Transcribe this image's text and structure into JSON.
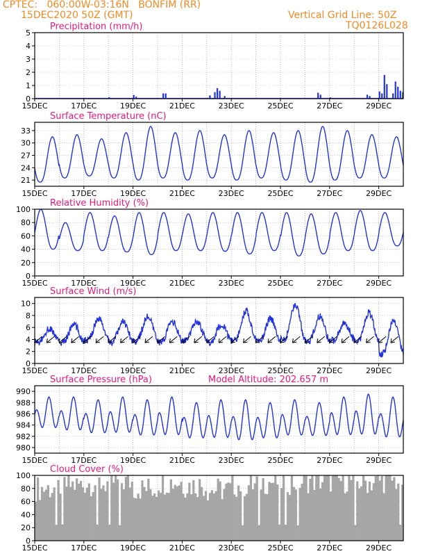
{
  "header": {
    "line1": "CPTEC:   060:00W-03:16N   BONFIM (RR)",
    "line2": "15DEC2020 50Z (GMT)",
    "right1": "Vertical Grid Line: 50Z",
    "right2": "TQ0126L028"
  },
  "colors": {
    "header": "#f08a24",
    "title": "#e8187c",
    "series": "#2233dd",
    "cloud": "#a6a6a6",
    "arrow": "#000000"
  },
  "x_axis": {
    "labels": [
      "15DEC",
      "17DEC",
      "19DEC",
      "21DEC",
      "23DEC",
      "25DEC",
      "27DEC",
      "29DEC"
    ],
    "label_days": [
      0,
      2,
      4,
      6,
      8,
      10,
      12,
      14
    ],
    "range_days": [
      0,
      15
    ],
    "vertical_grid_every_days": 1
  },
  "chart_data": [
    {
      "id": "precip",
      "type": "bar",
      "title": "Precipitation (mm/h)",
      "ylim": [
        0,
        5
      ],
      "yticks": [
        0,
        1,
        2,
        3,
        4,
        5
      ],
      "events": [
        {
          "day": 3.0,
          "value": 0.12
        },
        {
          "day": 4.0,
          "value": 0.28
        },
        {
          "day": 4.1,
          "value": 0.15
        },
        {
          "day": 5.2,
          "value": 0.4
        },
        {
          "day": 5.3,
          "value": 0.4
        },
        {
          "day": 7.1,
          "value": 0.25
        },
        {
          "day": 7.3,
          "value": 0.5
        },
        {
          "day": 7.4,
          "value": 0.8
        },
        {
          "day": 7.5,
          "value": 0.6
        },
        {
          "day": 7.7,
          "value": 0.2
        },
        {
          "day": 11.5,
          "value": 0.45
        },
        {
          "day": 11.6,
          "value": 0.3
        },
        {
          "day": 12.0,
          "value": 0.1
        },
        {
          "day": 13.5,
          "value": 0.3
        },
        {
          "day": 13.6,
          "value": 0.2
        },
        {
          "day": 14.0,
          "value": 0.55
        },
        {
          "day": 14.1,
          "value": 0.4
        },
        {
          "day": 14.2,
          "value": 1.8
        },
        {
          "day": 14.3,
          "value": 1.1
        },
        {
          "day": 14.55,
          "value": 0.4
        },
        {
          "day": 14.65,
          "value": 1.3
        },
        {
          "day": 14.75,
          "value": 0.9
        },
        {
          "day": 14.85,
          "value": 0.6
        },
        {
          "day": 14.95,
          "value": 0.5
        }
      ]
    },
    {
      "id": "temp",
      "type": "line",
      "title": "Surface Temperature (nC)",
      "ylim": [
        19.5,
        35
      ],
      "yticks": [
        21,
        24,
        27,
        30,
        33
      ],
      "daily": [
        {
          "min": 20.5,
          "max": 31.5
        },
        {
          "min": 21.5,
          "max": 32.0
        },
        {
          "min": 22.0,
          "max": 31.0
        },
        {
          "min": 21.5,
          "max": 32.5
        },
        {
          "min": 21.0,
          "max": 34.0
        },
        {
          "min": 21.5,
          "max": 32.5
        },
        {
          "min": 21.0,
          "max": 33.0
        },
        {
          "min": 21.5,
          "max": 32.0
        },
        {
          "min": 21.0,
          "max": 33.0
        },
        {
          "min": 21.5,
          "max": 32.5
        },
        {
          "min": 21.0,
          "max": 33.0
        },
        {
          "min": 20.5,
          "max": 34.0
        },
        {
          "min": 21.0,
          "max": 33.0
        },
        {
          "min": 21.5,
          "max": 32.0
        },
        {
          "min": 21.5,
          "max": 31.5
        }
      ]
    },
    {
      "id": "rh",
      "type": "line",
      "title": "Relative Humidity (%)",
      "ylim": [
        0,
        100
      ],
      "yticks": [
        0,
        20,
        40,
        60,
        80,
        100
      ],
      "daily": [
        {
          "min": 40,
          "max": 100
        },
        {
          "min": 38,
          "max": 80
        },
        {
          "min": 38,
          "max": 95
        },
        {
          "min": 36,
          "max": 90
        },
        {
          "min": 32,
          "max": 95
        },
        {
          "min": 38,
          "max": 95
        },
        {
          "min": 38,
          "max": 93
        },
        {
          "min": 37,
          "max": 95
        },
        {
          "min": 33,
          "max": 95
        },
        {
          "min": 38,
          "max": 95
        },
        {
          "min": 30,
          "max": 95
        },
        {
          "min": 33,
          "max": 93
        },
        {
          "min": 38,
          "max": 95
        },
        {
          "min": 38,
          "max": 98
        },
        {
          "min": 45,
          "max": 95
        }
      ]
    },
    {
      "id": "wind",
      "type": "line",
      "title": "Surface Wind (m/s)",
      "ylim": [
        0,
        11
      ],
      "yticks": [
        0,
        2,
        4,
        6,
        8,
        10
      ],
      "daily": [
        {
          "min": 3.5,
          "max": 5.8
        },
        {
          "min": 3.5,
          "max": 6.5
        },
        {
          "min": 3.8,
          "max": 7.5
        },
        {
          "min": 3.5,
          "max": 7.0
        },
        {
          "min": 3.8,
          "max": 7.8
        },
        {
          "min": 3.5,
          "max": 7.0
        },
        {
          "min": 3.8,
          "max": 7.0
        },
        {
          "min": 3.5,
          "max": 6.5
        },
        {
          "min": 3.8,
          "max": 8.8
        },
        {
          "min": 3.5,
          "max": 7.5
        },
        {
          "min": 3.8,
          "max": 9.8
        },
        {
          "min": 3.5,
          "max": 7.8
        },
        {
          "min": 3.8,
          "max": 6.8
        },
        {
          "min": 3.5,
          "max": 8.5
        },
        {
          "min": 1.5,
          "max": 7.0
        }
      ],
      "arrow_every_days": 0.5,
      "arrow_direction": "from NE"
    },
    {
      "id": "press",
      "type": "line",
      "title": "Surface Pressure (hPa)",
      "extra_label": "Model Altitude: 202.657 m",
      "ylim": [
        979,
        991
      ],
      "yticks": [
        980,
        982,
        984,
        986,
        988,
        990
      ],
      "semidiurnal": [
        {
          "min": 982.5,
          "max": 989.0
        },
        {
          "min": 982.0,
          "max": 989.0
        },
        {
          "min": 981.5,
          "max": 988.5
        },
        {
          "min": 981.5,
          "max": 989.0
        },
        {
          "min": 981.0,
          "max": 988.5
        },
        {
          "min": 981.0,
          "max": 989.0
        },
        {
          "min": 980.5,
          "max": 988.0
        },
        {
          "min": 980.5,
          "max": 988.5
        },
        {
          "min": 980.0,
          "max": 988.5
        },
        {
          "min": 980.5,
          "max": 988.0
        },
        {
          "min": 981.0,
          "max": 988.5
        },
        {
          "min": 981.0,
          "max": 988.0
        },
        {
          "min": 981.0,
          "max": 989.0
        },
        {
          "min": 981.0,
          "max": 989.5
        },
        {
          "min": 980.5,
          "max": 989.0
        }
      ]
    },
    {
      "id": "cloud",
      "type": "bar",
      "title": "Cloud Cover (%)",
      "ylim": [
        0,
        100
      ],
      "yticks": [
        0,
        20,
        40,
        60,
        80,
        100
      ],
      "daily_mean": [
        80,
        85,
        88,
        90,
        80,
        90,
        85,
        78,
        85,
        90,
        90,
        92,
        92,
        90,
        92
      ]
    }
  ]
}
